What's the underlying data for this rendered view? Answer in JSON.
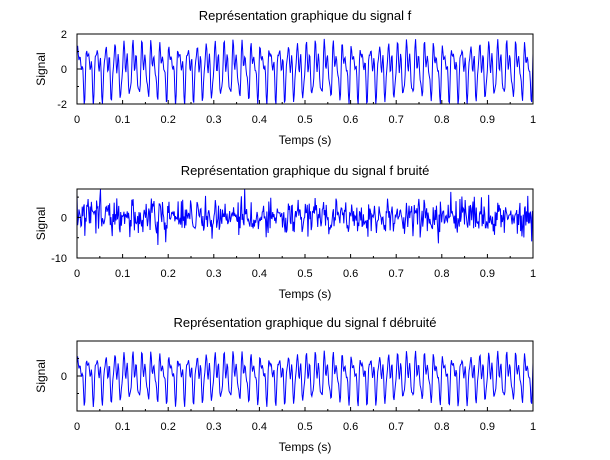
{
  "figure": {
    "background": "#ffffff",
    "line_color": "#0000ff",
    "axis_color": "#000000"
  },
  "chart_data": [
    {
      "type": "line",
      "title": "Représentation graphique du signal f",
      "xlabel": "Temps (s)",
      "ylabel": "Signal",
      "xlim": [
        0,
        1
      ],
      "ylim": [
        -2,
        2
      ],
      "x_ticks": [
        0,
        0.1,
        0.2,
        0.3,
        0.4,
        0.5,
        0.6,
        0.7,
        0.8,
        0.9,
        1
      ],
      "x_tick_labels": [
        "0",
        "0.1",
        "0.2",
        "0.3",
        "0.4",
        "0.5",
        "0.6",
        "0.7",
        "0.8",
        "0.9",
        "1"
      ],
      "y_ticks": [
        -2,
        0,
        2
      ],
      "y_tick_labels": [
        "-2",
        "0",
        "2"
      ],
      "y_minor_ticks": [
        -1,
        1
      ],
      "grid": false,
      "signal": {
        "x_range": [
          0,
          1
        ],
        "approx_cycles": 50,
        "amplitude": 1.9
      }
    },
    {
      "type": "line",
      "title": "Représentation graphique du signal f bruité",
      "xlabel": "Temps (s)",
      "ylabel": "Signal",
      "xlim": [
        0,
        1
      ],
      "ylim": [
        -10,
        7
      ],
      "x_ticks": [
        0,
        0.1,
        0.2,
        0.3,
        0.4,
        0.5,
        0.6,
        0.7,
        0.8,
        0.9,
        1
      ],
      "x_tick_labels": [
        "0",
        "0.1",
        "0.2",
        "0.3",
        "0.4",
        "0.5",
        "0.6",
        "0.7",
        "0.8",
        "0.9",
        "1"
      ],
      "y_ticks": [
        -10,
        0
      ],
      "y_tick_labels": [
        "-10",
        "0"
      ],
      "y_minor_ticks": [
        -5,
        5
      ],
      "grid": false,
      "signal": {
        "x_range": [
          0,
          1
        ],
        "approx_cycles": 50,
        "amplitude": 1.9,
        "noise_std": 2.0
      }
    },
    {
      "type": "line",
      "title": "Représentation graphique du signal f débruité",
      "xlabel": "Temps (s)",
      "ylabel": "Signal",
      "xlim": [
        0,
        1
      ],
      "ylim": [
        -2,
        2
      ],
      "x_ticks": [
        0,
        0.1,
        0.2,
        0.3,
        0.4,
        0.5,
        0.6,
        0.7,
        0.8,
        0.9,
        1
      ],
      "x_tick_labels": [
        "0",
        "0.1",
        "0.2",
        "0.3",
        "0.4",
        "0.5",
        "0.6",
        "0.7",
        "0.8",
        "0.9",
        "1"
      ],
      "y_ticks": [
        0
      ],
      "y_tick_labels": [
        "0"
      ],
      "y_minor_ticks": [
        -1,
        1
      ],
      "grid": false,
      "signal": {
        "x_range": [
          0,
          1
        ],
        "approx_cycles": 50,
        "amplitude": 1.6
      }
    }
  ]
}
